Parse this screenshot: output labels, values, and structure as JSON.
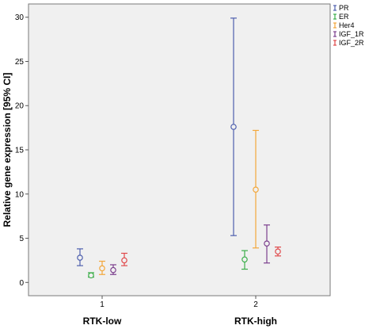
{
  "chart_data": {
    "type": "errorbar",
    "ylabel": "Relative gene expression [95% CI]",
    "ylim": [
      -1.5,
      31.5
    ],
    "yticks": [
      0,
      5,
      10,
      15,
      20,
      25,
      30
    ],
    "x_ticks": [
      "1",
      "2"
    ],
    "categories": [
      "RTK-low",
      "RTK-high"
    ],
    "grid": false,
    "legend_position": "top-right outside",
    "series": [
      {
        "name": "PR",
        "color": "#4e5fae",
        "points": [
          {
            "mean": 2.8,
            "low": 1.9,
            "high": 3.8
          },
          {
            "mean": 17.6,
            "low": 5.3,
            "high": 29.9
          }
        ]
      },
      {
        "name": "ER",
        "color": "#3cae4a",
        "points": [
          {
            "mean": 0.8,
            "low": 0.6,
            "high": 1.1
          },
          {
            "mean": 2.6,
            "low": 1.5,
            "high": 3.6
          }
        ]
      },
      {
        "name": "Her4",
        "color": "#f3a73b",
        "points": [
          {
            "mean": 1.6,
            "low": 0.9,
            "high": 2.4
          },
          {
            "mean": 10.5,
            "low": 3.9,
            "high": 17.2
          }
        ]
      },
      {
        "name": "IGF_1R",
        "color": "#7c3f8e",
        "points": [
          {
            "mean": 1.4,
            "low": 0.9,
            "high": 2.0
          },
          {
            "mean": 4.4,
            "low": 2.2,
            "high": 6.5
          }
        ]
      },
      {
        "name": "IGF_2R",
        "color": "#e0484a",
        "points": [
          {
            "mean": 2.5,
            "low": 1.9,
            "high": 3.3
          },
          {
            "mean": 3.5,
            "low": 3.0,
            "high": 4.0
          }
        ]
      }
    ]
  }
}
